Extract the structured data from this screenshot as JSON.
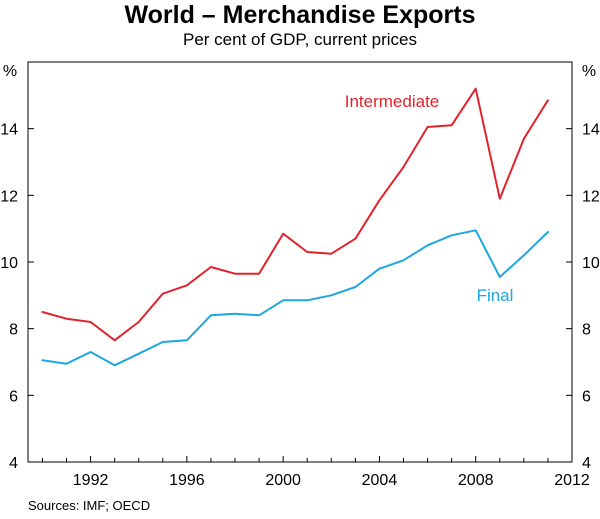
{
  "chart_data": {
    "type": "line",
    "title": "World – Merchandise Exports",
    "subtitle": "Per cent of GDP, current prices",
    "ylabel_left": "%",
    "ylabel_right": "%",
    "xlabel": "",
    "x": [
      1990,
      1991,
      1992,
      1993,
      1994,
      1995,
      1996,
      1997,
      1998,
      1999,
      2000,
      2001,
      2002,
      2003,
      2004,
      2005,
      2006,
      2007,
      2008,
      2009,
      2010,
      2011
    ],
    "xlim": [
      1989.4,
      2012
    ],
    "ylim": [
      4,
      16
    ],
    "x_ticks": [
      1992,
      1996,
      2000,
      2004,
      2008,
      2012
    ],
    "y_ticks": [
      4,
      6,
      8,
      10,
      12,
      14
    ],
    "series": [
      {
        "name": "Intermediate",
        "color": "#e0242c",
        "values": [
          8.5,
          8.3,
          8.2,
          7.65,
          8.2,
          9.05,
          9.3,
          9.85,
          9.65,
          9.65,
          10.85,
          10.3,
          10.25,
          10.7,
          11.85,
          12.85,
          14.05,
          14.1,
          15.2,
          11.9,
          13.7,
          14.85
        ]
      },
      {
        "name": "Final",
        "color": "#1ea6e0",
        "values": [
          7.05,
          6.95,
          7.3,
          6.9,
          7.25,
          7.6,
          7.65,
          8.4,
          8.45,
          8.4,
          8.85,
          8.85,
          9.0,
          9.25,
          9.8,
          10.05,
          10.5,
          10.8,
          10.95,
          9.55,
          10.2,
          10.9
        ]
      }
    ],
    "legend_labels": [
      "Intermediate",
      "Final"
    ],
    "source": "Sources: IMF; OECD",
    "grid": false
  }
}
